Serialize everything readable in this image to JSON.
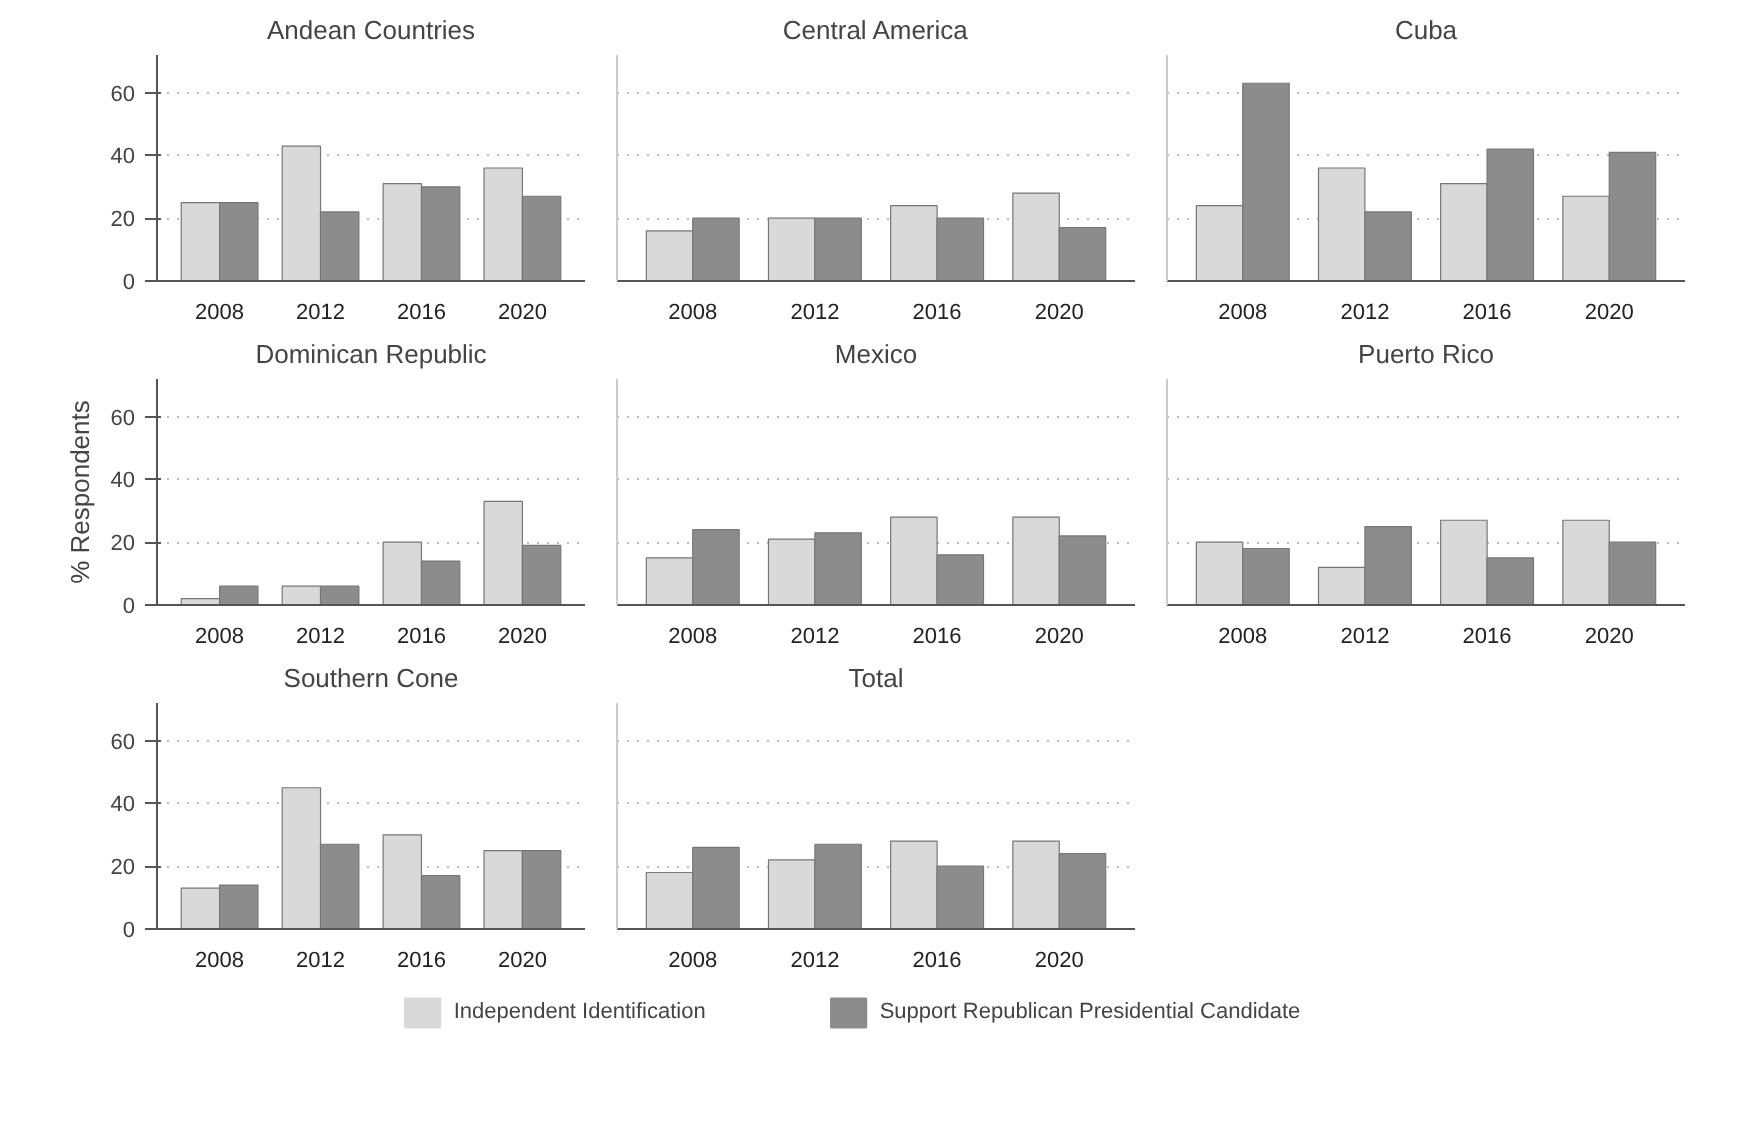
{
  "chart_data": [
    {
      "type": "bar",
      "title": "Andean Countries",
      "categories": [
        "2008",
        "2012",
        "2016",
        "2020"
      ],
      "ylim": [
        0,
        72
      ],
      "yticks": [
        0,
        20,
        40,
        60
      ],
      "grid": "y",
      "legend": "bottom",
      "series": [
        {
          "name": "Independent Identification",
          "color": "#d9d9d9",
          "values": [
            25,
            43,
            31,
            36
          ]
        },
        {
          "name": "Support Republican Presidential Candidate",
          "color": "#8c8c8c",
          "values": [
            25,
            22,
            30,
            27
          ]
        }
      ]
    },
    {
      "type": "bar",
      "title": "Central America",
      "categories": [
        "2008",
        "2012",
        "2016",
        "2020"
      ],
      "ylim": [
        0,
        72
      ],
      "yticks": [
        0,
        20,
        40,
        60
      ],
      "grid": "y",
      "tick_labels": "x",
      "series": [
        {
          "color": "#d9d9d9",
          "values": [
            16,
            20,
            24,
            28
          ]
        },
        {
          "color": "#8c8c8c",
          "values": [
            20,
            20,
            20,
            17
          ]
        }
      ]
    },
    {
      "type": "bar",
      "title": "Cuba",
      "categories": [
        "2008",
        "2012",
        "2016",
        "2020"
      ],
      "ylim": [
        0,
        72
      ],
      "yticks": [
        0,
        20,
        40,
        60
      ],
      "grid": "y",
      "tick_labels": "x",
      "series": [
        {
          "color": "#d9d9d9",
          "values": [
            24,
            36,
            31,
            27
          ]
        },
        {
          "color": "#8c8c8c",
          "values": [
            63,
            22,
            42,
            41
          ]
        }
      ]
    },
    {
      "type": "bar",
      "title": "Dominican Republic",
      "ylabel": "% Respondents",
      "categories": [
        "2008",
        "2012",
        "2016",
        "2020"
      ],
      "ylim": [
        0,
        72
      ],
      "yticks": [
        0,
        20,
        40,
        60
      ],
      "grid": "y",
      "series": [
        {
          "color": "#d9d9d9",
          "values": [
            2,
            6,
            20,
            33
          ]
        },
        {
          "color": "#8c8c8c",
          "values": [
            6,
            6,
            14,
            19
          ]
        }
      ]
    },
    {
      "type": "bar",
      "title": "Mexico",
      "categories": [
        "2008",
        "2012",
        "2016",
        "2020"
      ],
      "ylim": [
        0,
        72
      ],
      "yticks": [
        0,
        20,
        40,
        60
      ],
      "grid": "y",
      "tick_labels": "x",
      "series": [
        {
          "color": "#d9d9d9",
          "values": [
            15,
            21,
            28,
            28
          ]
        },
        {
          "color": "#8c8c8c",
          "values": [
            24,
            23,
            16,
            22
          ]
        }
      ]
    },
    {
      "type": "bar",
      "title": "Puerto Rico",
      "categories": [
        "2008",
        "2012",
        "2016",
        "2020"
      ],
      "ylim": [
        0,
        72
      ],
      "yticks": [
        0,
        20,
        40,
        60
      ],
      "grid": "y",
      "tick_labels": "x",
      "series": [
        {
          "color": "#d9d9d9",
          "values": [
            20,
            12,
            27,
            27
          ]
        },
        {
          "color": "#8c8c8c",
          "values": [
            18,
            25,
            15,
            20
          ]
        }
      ]
    },
    {
      "type": "bar",
      "title": "Southern Cone",
      "categories": [
        "2008",
        "2012",
        "2016",
        "2020"
      ],
      "ylim": [
        0,
        72
      ],
      "yticks": [
        0,
        20,
        40,
        60
      ],
      "grid": "y",
      "series": [
        {
          "color": "#d9d9d9",
          "values": [
            13,
            45,
            30,
            25
          ]
        },
        {
          "color": "#8c8c8c",
          "values": [
            14,
            27,
            17,
            25
          ]
        }
      ]
    },
    {
      "type": "bar",
      "title": "Total",
      "categories": [
        "2008",
        "2012",
        "2016",
        "2020"
      ],
      "ylim": [
        0,
        72
      ],
      "yticks": [
        0,
        20,
        40,
        60
      ],
      "grid": "y",
      "tick_labels": "x",
      "series": [
        {
          "color": "#d9d9d9",
          "values": [
            18,
            22,
            28,
            28
          ]
        },
        {
          "color": "#8c8c8c",
          "values": [
            26,
            27,
            20,
            24
          ]
        }
      ]
    }
  ]
}
